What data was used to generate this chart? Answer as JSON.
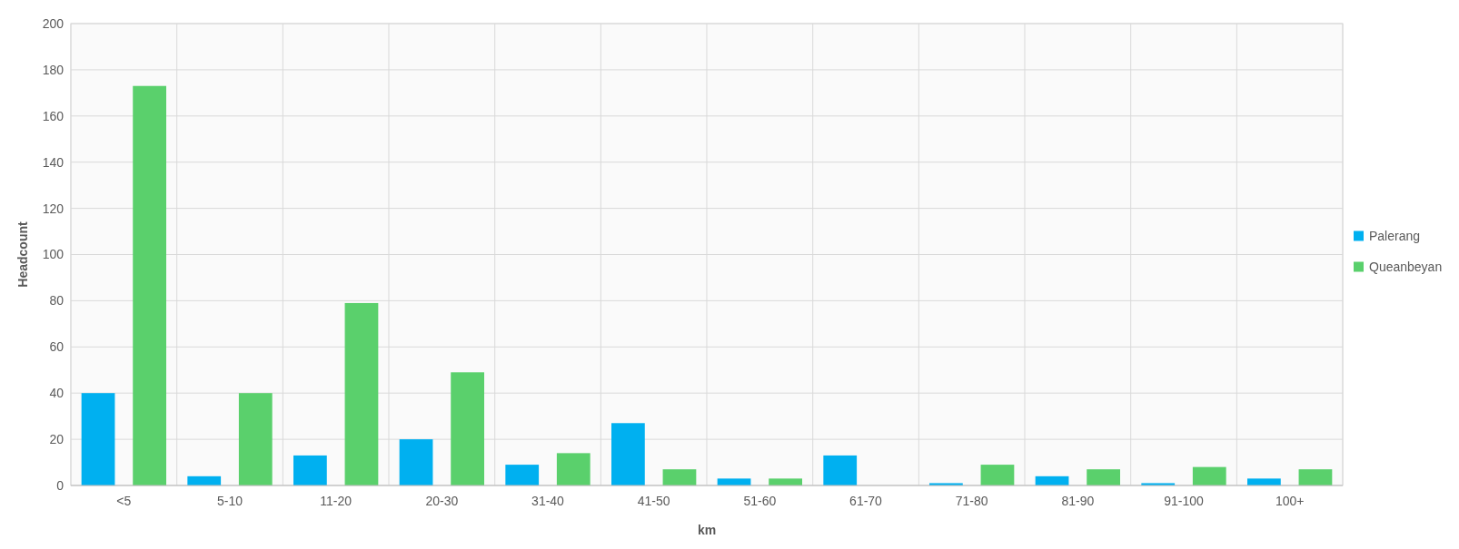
{
  "chart_data": {
    "type": "bar",
    "xlabel": "km",
    "ylabel": "Headcount",
    "categories": [
      "<5",
      "5-10",
      "11-20",
      "20-30",
      "31-40",
      "41-50",
      "51-60",
      "61-70",
      "71-80",
      "81-90",
      "91-100",
      "100+"
    ],
    "series": [
      {
        "name": "Palerang",
        "color": "#00b0f0",
        "values": [
          40,
          4,
          13,
          20,
          9,
          27,
          3,
          13,
          1,
          4,
          1,
          3
        ]
      },
      {
        "name": "Queanbeyan",
        "color": "#5ad06c",
        "values": [
          173,
          40,
          79,
          49,
          14,
          7,
          3,
          0,
          9,
          7,
          8,
          7
        ]
      }
    ],
    "ylim": [
      0,
      200
    ],
    "yticks": [
      0,
      20,
      40,
      60,
      80,
      100,
      120,
      140,
      160,
      180,
      200
    ],
    "grid": true,
    "legend": "right"
  }
}
